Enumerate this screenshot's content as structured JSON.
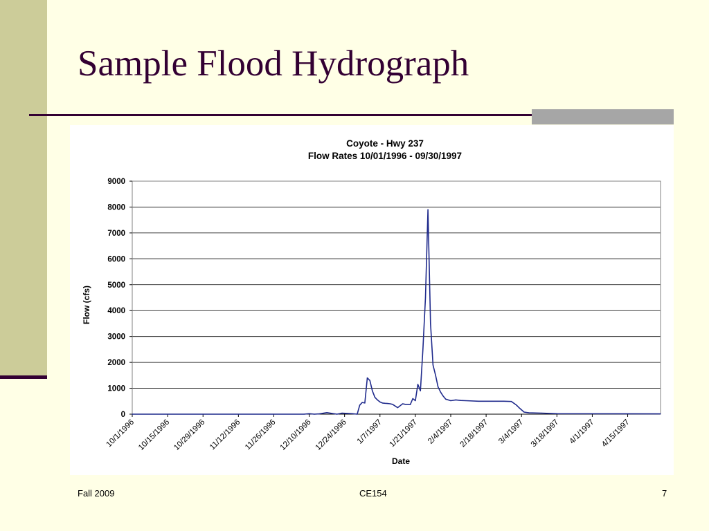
{
  "slide": {
    "title": "Sample Flood Hydrograph",
    "footer_left": "Fall 2009",
    "footer_center": "CE154",
    "footer_right": "7"
  },
  "colors": {
    "background": "#FFFFE6",
    "accent_bar": "#CCCC99",
    "title": "#330033",
    "series_line": "#1F2A8C",
    "gray_block": "#A6A6A6"
  },
  "chart_data": {
    "type": "line",
    "title": "Coyote - Hwy 237",
    "subtitle": "Flow Rates 10/01/1996 - 09/30/1997",
    "xlabel": "Date",
    "ylabel": "Flow (cfs)",
    "ylim": [
      0,
      9000
    ],
    "yticks": [
      "9000",
      "8000",
      "7000",
      "6000",
      "5000",
      "4000",
      "3000",
      "2000",
      "1000",
      "0"
    ],
    "xlim": [
      "10/1/1996",
      "4/28/1997"
    ],
    "xtick_labels": [
      "10/1/1996",
      "10/15/1996",
      "10/29/1996",
      "11/12/1996",
      "11/26/1996",
      "12/10/1996",
      "12/24/1996",
      "1/7/1997",
      "1/21/1997",
      "2/4/1997",
      "2/18/1997",
      "3/4/1997",
      "3/18/1997",
      "4/1/1997",
      "4/15/1997"
    ],
    "grid": true,
    "legend": "none",
    "series": [
      {
        "x": [
          "10/1/1996",
          "12/8/1996",
          "12/10/1996",
          "12/12/1996",
          "12/14/1996",
          "12/17/1996",
          "12/19/1996",
          "12/21/1996",
          "12/23/1996",
          "12/25/1996",
          "12/27/1996",
          "12/29/1996",
          "12/30/1996",
          "12/31/1996",
          "1/1/1997",
          "1/2/1997",
          "1/3/1997",
          "1/4/1997",
          "1/5/1997",
          "1/6/1997",
          "1/7/1997",
          "1/8/1997",
          "1/9/1997",
          "1/10/1997",
          "1/11/1997",
          "1/12/1997",
          "1/14/1997",
          "1/16/1997",
          "1/17/1997",
          "1/18/1997",
          "1/19/1997",
          "1/20/1997",
          "1/21/1997",
          "1/22/1997",
          "1/23/1997",
          "1/24/1997",
          "1/25/1997",
          "1/26/1997",
          "1/27/1997",
          "1/28/1997",
          "1/29/1997",
          "1/30/1997",
          "1/31/1997",
          "2/1/1997",
          "2/2/1997",
          "2/4/1997",
          "2/6/1997",
          "2/8/1997",
          "2/10/1997",
          "2/15/1997",
          "2/20/1997",
          "2/25/1997",
          "2/28/1997",
          "3/2/1997",
          "3/3/1997",
          "3/5/1997",
          "3/7/1997",
          "3/12/1997",
          "3/18/1997",
          "4/28/1997"
        ],
        "y": [
          0,
          0,
          20,
          0,
          10,
          60,
          30,
          0,
          40,
          30,
          20,
          0,
          350,
          450,
          430,
          1400,
          1300,
          900,
          650,
          550,
          470,
          430,
          420,
          410,
          400,
          380,
          250,
          400,
          380,
          380,
          370,
          600,
          520,
          1150,
          900,
          2500,
          4500,
          7900,
          3500,
          1900,
          1500,
          1050,
          850,
          700,
          580,
          520,
          550,
          530,
          520,
          500,
          500,
          500,
          490,
          350,
          250,
          80,
          50,
          40,
          20,
          10
        ]
      }
    ]
  }
}
